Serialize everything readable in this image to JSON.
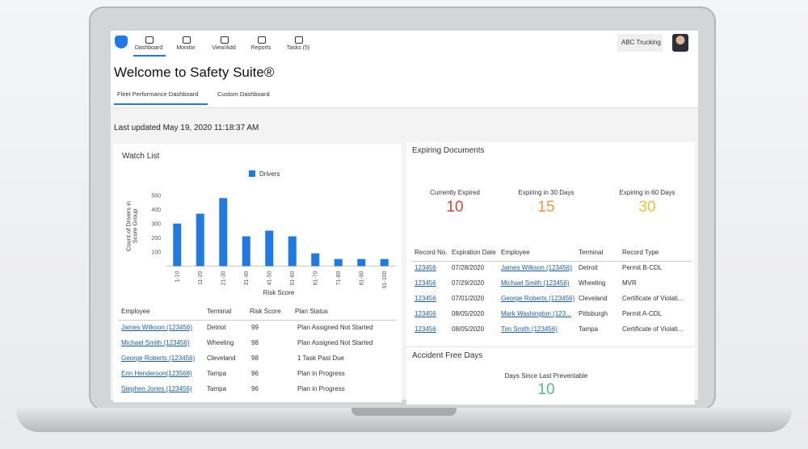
{
  "nav": {
    "items": [
      "Dashboard",
      "Monitor",
      "View/Add",
      "Reports",
      "Tasks (5)"
    ],
    "company": "ABC Trucking"
  },
  "page_title": "Welcome to Safety Suite®",
  "tabs": [
    "Fleet Performance Dashboard",
    "Custom Dashboard"
  ],
  "last_updated": "Last updated May 19, 2020 11:18:37 AM",
  "watch_list": {
    "title": "Watch List",
    "columns": [
      "Employee",
      "Terminal",
      "Risk Score",
      "Plan Status"
    ],
    "rows": [
      [
        "James Wilkson (123456)",
        "Detriot",
        99,
        "Plan Assigned Not Started"
      ],
      [
        "Michael Smith (123456)",
        "Wheeling",
        98,
        "Plan Assigned Not Started"
      ],
      [
        "George Roberts  (123456)",
        "Cleveland",
        98,
        "1 Task Past Due"
      ],
      [
        "Erin Henderson(123568)",
        "Tampa",
        96,
        "Plan in Progress"
      ],
      [
        "Stephen Jones  (123456)",
        "Tampa",
        96,
        "Plan in Progress"
      ]
    ]
  },
  "chart_data": {
    "type": "bar",
    "x_label": "Risk Score",
    "y_label": "Count of Drivers in Score Group",
    "categories": [
      "1-10",
      "11-20",
      "21-30",
      "31-40",
      "41-50",
      "51-60",
      "61-70",
      "71-80",
      "81-90",
      "91-100"
    ],
    "series": [
      {
        "name": "Drivers",
        "color": "#1f7ae6",
        "values": [
          300,
          370,
          480,
          210,
          250,
          210,
          90,
          50,
          50,
          50
        ]
      }
    ],
    "ylim": [
      0,
      550
    ],
    "yticks": [
      100,
      200,
      300,
      400,
      500
    ],
    "grid": false,
    "legend": "top"
  },
  "expiring": {
    "title": "Expiring Documents",
    "stats": [
      {
        "label": "Currently Expired",
        "value": 10,
        "color": "#d8473c"
      },
      {
        "label": "Expiring in 30 Days",
        "value": 15,
        "color": "#ee9a3e"
      },
      {
        "label": "Expiring in 60 Days",
        "value": 30,
        "color": "#e6c43c"
      }
    ],
    "columns": [
      "Record No.",
      "Expiration Date",
      "Employee",
      "Terminal",
      "Record Type"
    ],
    "rows": [
      [
        "123456",
        "07/28/2020",
        "James Wilkson (123456)",
        "Detroit",
        "Permit B-CDL"
      ],
      [
        "123456",
        "07/29/2020",
        "Michael Smith (123456)",
        "Wheeling",
        "MVR"
      ],
      [
        "123456",
        "07/01/2020",
        "George Roberts (123456)",
        "Cleveland",
        "Certificate of Violati..."
      ],
      [
        "123456",
        "08/05/2020",
        "Mark Washington  (123...",
        "Pittsburgh",
        "Permit A-CDL"
      ],
      [
        "123456",
        "08/05/2020",
        "Tim Smith  (123456)",
        "Tampa",
        "Certificate of Violati..."
      ]
    ]
  },
  "accident": {
    "title": "Accident Free Days",
    "label": "Days Since Last Preventable",
    "value": 10,
    "color": "#5bb88c"
  }
}
